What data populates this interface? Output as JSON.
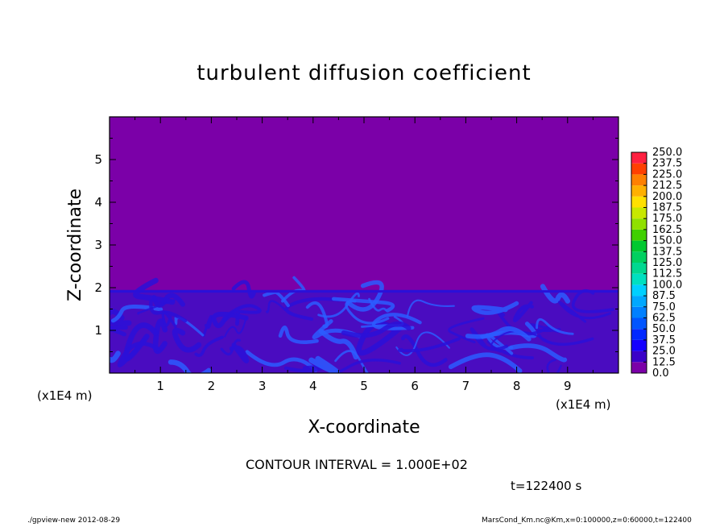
{
  "chart_data": {
    "type": "heatmap",
    "title": "turbulent diffusion coefficient",
    "xlabel": "X-coordinate",
    "ylabel": "Z-coordinate",
    "x_unit": "(x1E4 m)",
    "y_unit": "(x1E4 m)",
    "xlim": [
      0,
      10
    ],
    "ylim": [
      0,
      6
    ],
    "x_ticks": [
      1,
      2,
      3,
      4,
      5,
      6,
      7,
      8,
      9
    ],
    "y_ticks": [
      1,
      2,
      3,
      4,
      5
    ],
    "mixed_layer_top": 1.95,
    "background_value": 0.0,
    "colorbar": {
      "levels": [
        "0.0",
        "12.5",
        "25.0",
        "37.5",
        "50.0",
        "62.5",
        "75.0",
        "87.5",
        "100.0",
        "112.5",
        "125.0",
        "137.5",
        "150.0",
        "162.5",
        "175.0",
        "187.5",
        "200.0",
        "212.5",
        "225.0",
        "237.5",
        "250.0"
      ],
      "colors": [
        "#7b00a8",
        "#3a00c8",
        "#1400ff",
        "#0028ff",
        "#0055ff",
        "#0080ff",
        "#00a8ff",
        "#00d0ff",
        "#00e0c0",
        "#00d890",
        "#00d060",
        "#00c830",
        "#40d000",
        "#90e000",
        "#c8e800",
        "#ffe000",
        "#ffb000",
        "#ff8000",
        "#ff4000",
        "#ff2040",
        "#ff8090"
      ]
    }
  },
  "contour_interval": "CONTOUR INTERVAL = 1.000E+02",
  "time_label": "t=122400 s",
  "footer_left": "./gpview-new   2012-08-29",
  "footer_right": "MarsCond_Km.nc@Km,x=0:100000,z=0:60000,t=122400",
  "colors": {
    "background": "#7b00a8",
    "eddy_dark": "#2a10d8",
    "eddy_light": "#2c5cff"
  }
}
